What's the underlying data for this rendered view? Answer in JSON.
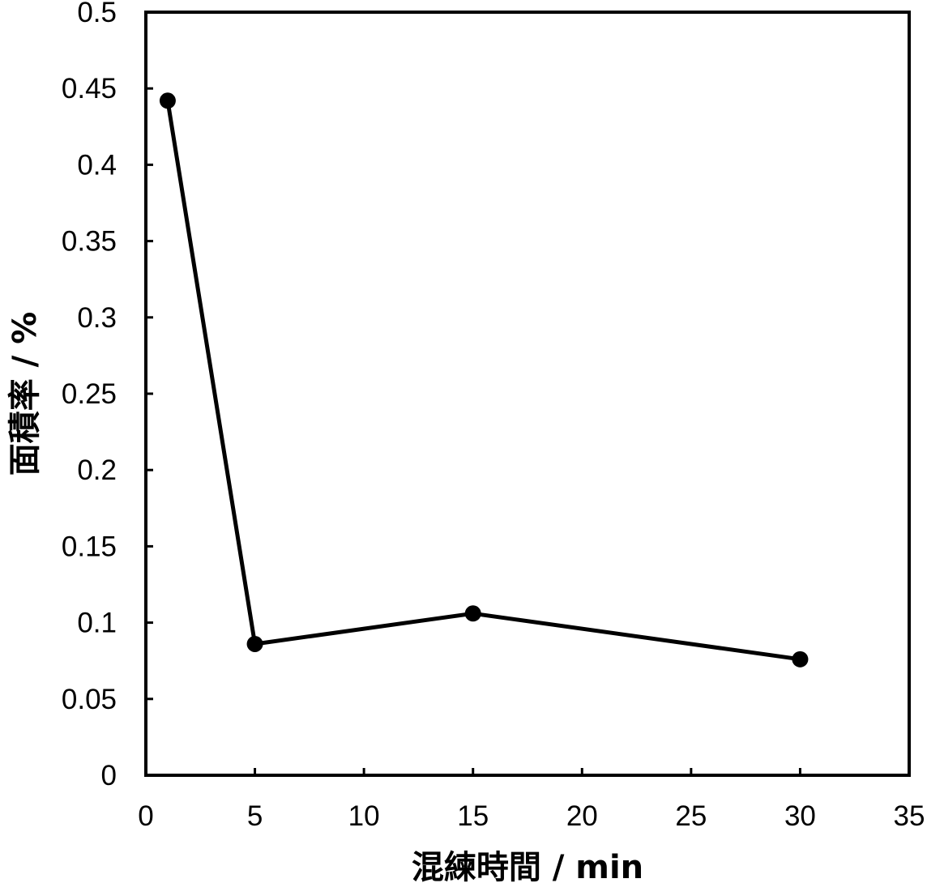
{
  "chart_data": {
    "type": "line",
    "title": "",
    "xlabel": "混練時間 / min",
    "ylabel": "面積率 / %",
    "xlim": [
      0,
      35
    ],
    "ylim": [
      0,
      0.5
    ],
    "x_ticks": [
      "0",
      "5",
      "10",
      "15",
      "20",
      "25",
      "30",
      "35"
    ],
    "y_ticks": [
      "0",
      "0.05",
      "0.1",
      "0.15",
      "0.2",
      "0.25",
      "0.3",
      "0.35",
      "0.4",
      "0.45",
      "0.5"
    ],
    "grid": false,
    "legend": "none",
    "series": [
      {
        "x": [
          1,
          5,
          15,
          30
        ],
        "y": [
          0.442,
          0.086,
          0.106,
          0.076
        ],
        "color": "#000000",
        "marker": "circle"
      }
    ]
  }
}
